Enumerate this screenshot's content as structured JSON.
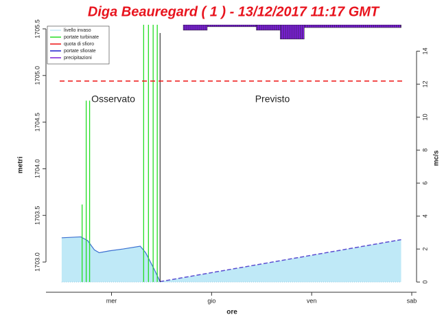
{
  "chart_data": {
    "type": "reservoir",
    "title": "Diga Beauregard ( 1 ) -  13/12/2017 11:17 GMT",
    "ylabel": "metri",
    "y2label": "mc/s",
    "xlabel": "ore",
    "annotations": [
      "Osservato",
      "Previsto"
    ],
    "xlim": [
      0.345,
      4.048
    ],
    "xticks": [
      {
        "value": 1,
        "label": "mer"
      },
      {
        "value": 2,
        "label": "gio"
      },
      {
        "value": 3,
        "label": "ven"
      },
      {
        "value": 4,
        "label": "sab"
      }
    ],
    "ylim": [
      1702.676,
      1705.544
    ],
    "yticks": [
      {
        "value": 1703.0,
        "label": "1703.0"
      },
      {
        "value": 1703.5,
        "label": "1703.5"
      },
      {
        "value": 1704.0,
        "label": "1704.0"
      },
      {
        "value": 1704.5,
        "label": "1704.5"
      },
      {
        "value": 1705.0,
        "label": "1705.0"
      },
      {
        "value": 1705.5,
        "label": "1705.5"
      }
    ],
    "y2lim": [
      -0.62,
      15.6
    ],
    "y2ticks": [
      0,
      2,
      4,
      6,
      8,
      10,
      12,
      14
    ],
    "legend": "top-left",
    "series": [
      {
        "name": "livello invaso",
        "color": "#bfe9f7",
        "x": [
          0.502,
          0.693,
          0.761,
          0.829,
          0.877,
          0.98,
          1.116,
          1.287,
          1.341,
          1.423,
          1.485
        ],
        "values": [
          1703.26,
          1703.27,
          1703.23,
          1703.13,
          1703.1,
          1703.12,
          1703.14,
          1703.17,
          1703.1,
          1702.93,
          1702.79
        ],
        "forecast_x": [
          1.485,
          3.894
        ],
        "forecast_values": [
          1702.79,
          1703.24
        ]
      },
      {
        "name": "portate turbinate",
        "color": "#22dd22",
        "axis": "y2",
        "x": [
          0.706,
          0.747,
          0.781,
          1.321,
          1.369,
          1.416,
          1.457
        ],
        "values": [
          4.7,
          11,
          11,
          16,
          16,
          16,
          16
        ]
      },
      {
        "name": "quota di sfioro",
        "color": "#ee1111",
        "values": [
          1704.94
        ]
      },
      {
        "name": "portate sfiorate",
        "color": "#1a1acc",
        "axis": "y2",
        "values": []
      },
      {
        "name": "precipitazioni",
        "color": "#7a1fd6",
        "axis": "y2",
        "bins": [
          1.717,
          1.956,
          2.447,
          2.686,
          2.925,
          3.894
        ],
        "values": [
          0.33,
          0.12,
          0.33,
          0.87,
          0.17
        ]
      }
    ]
  }
}
